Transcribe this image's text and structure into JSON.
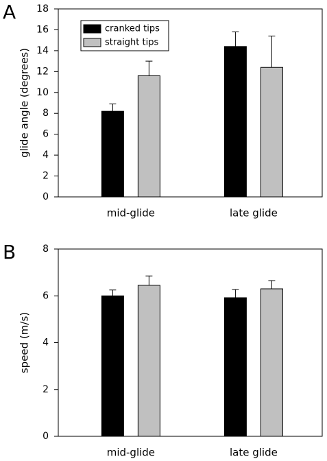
{
  "chart_data": [
    {
      "type": "bar",
      "panel": "A",
      "y_label": "glide angle (degrees)",
      "categories": [
        "mid-glide",
        "late glide"
      ],
      "series": [
        {
          "name": "cranked tips",
          "color": "#000000",
          "values": [
            8.2,
            14.4
          ],
          "errors": [
            0.7,
            1.4
          ]
        },
        {
          "name": "straight tips",
          "color": "#c0c0c0",
          "values": [
            11.6,
            12.4
          ],
          "errors": [
            1.4,
            3.0
          ]
        }
      ],
      "ylim": [
        0,
        18
      ],
      "yticks": [
        0,
        2,
        4,
        6,
        8,
        10,
        12,
        14,
        16,
        18
      ],
      "legend": "upper-left"
    },
    {
      "type": "bar",
      "panel": "B",
      "y_label": "speed (m/s)",
      "categories": [
        "mid-glide",
        "late glide"
      ],
      "series": [
        {
          "color": "#000000",
          "values": [
            6.0,
            5.92
          ],
          "errors": [
            0.25,
            0.35
          ]
        },
        {
          "color": "#c0c0c0",
          "values": [
            6.45,
            6.3
          ],
          "errors": [
            0.4,
            0.35
          ]
        }
      ],
      "ylim": [
        0,
        8
      ],
      "yticks": [
        0,
        2,
        4,
        6,
        8
      ]
    }
  ]
}
